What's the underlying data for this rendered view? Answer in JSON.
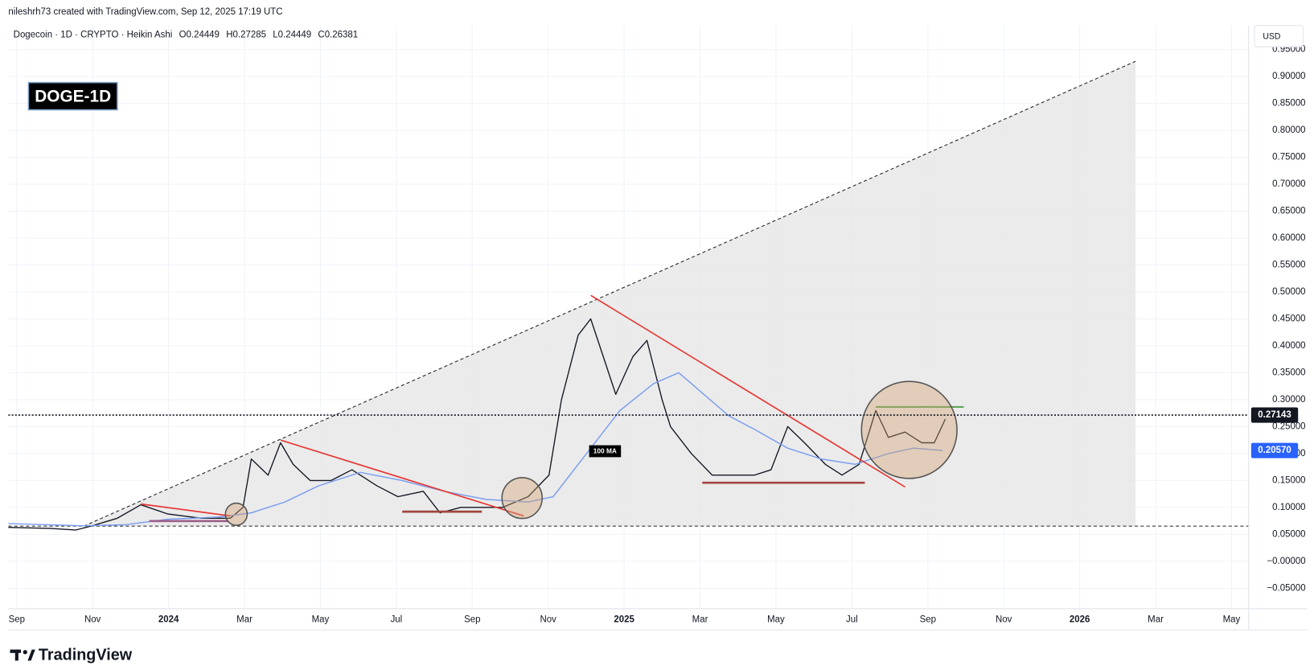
{
  "attribution": "nileshrh73 created with TradingView.com, Sep 12, 2025 17:19 UTC",
  "logo": "TradingView",
  "currency": "USD",
  "chart_data": {
    "type": "line",
    "title": "Dogecoin · 1D · CRYPTO · Heikin Ashi",
    "ohlc": [
      "O0.24449",
      "H0.27285",
      "L0.24449",
      "C0.26381"
    ],
    "badge": "DOGE-1D",
    "xlim": [
      -0.22,
      32.45
    ],
    "xticks": [
      {
        "value": 0,
        "label": "Sep"
      },
      {
        "value": 2,
        "label": "Nov"
      },
      {
        "value": 4,
        "label": "2024"
      },
      {
        "value": 6,
        "label": "Mar"
      },
      {
        "value": 8,
        "label": "May"
      },
      {
        "value": 10,
        "label": "Jul"
      },
      {
        "value": 12,
        "label": "Sep"
      },
      {
        "value": 14,
        "label": "Nov"
      },
      {
        "value": 16,
        "label": "2025"
      },
      {
        "value": 18,
        "label": "Mar"
      },
      {
        "value": 20,
        "label": "May"
      },
      {
        "value": 22,
        "label": "Jul"
      },
      {
        "value": 24,
        "label": "Sep"
      },
      {
        "value": 26,
        "label": "Nov"
      },
      {
        "value": 28,
        "label": "2026"
      },
      {
        "value": 30,
        "label": "Mar"
      },
      {
        "value": 32,
        "label": "May"
      }
    ],
    "ylim": [
      -0.088,
      0.963
    ],
    "yticks": [
      {
        "value": 0.95,
        "label": "0.95000"
      },
      {
        "value": 0.9,
        "label": "0.90000"
      },
      {
        "value": 0.85,
        "label": "0.85000"
      },
      {
        "value": 0.8,
        "label": "0.80000"
      },
      {
        "value": 0.75,
        "label": "0.75000"
      },
      {
        "value": 0.7,
        "label": "0.70000"
      },
      {
        "value": 0.65,
        "label": "0.65000"
      },
      {
        "value": 0.6,
        "label": "0.60000"
      },
      {
        "value": 0.55,
        "label": "0.55000"
      },
      {
        "value": 0.5,
        "label": "0.50000"
      },
      {
        "value": 0.45,
        "label": "0.45000"
      },
      {
        "value": 0.4,
        "label": "0.40000"
      },
      {
        "value": 0.35,
        "label": "0.35000"
      },
      {
        "value": 0.3,
        "label": "0.30000"
      },
      {
        "value": 0.25,
        "label": "0.25000"
      },
      {
        "value": 0.2,
        "label": "0.20000"
      },
      {
        "value": 0.15,
        "label": "0.15000"
      },
      {
        "value": 0.1,
        "label": "0.10000"
      },
      {
        "value": 0.05,
        "label": "0.05000"
      },
      {
        "value": 0,
        "label": "−0.00000"
      },
      {
        "value": -0.05,
        "label": "−0.05000"
      }
    ],
    "grid": true,
    "last_price": 0.27143,
    "ma_last": {
      "value": 0.2057,
      "label": "0.20570"
    },
    "series": [
      {
        "color": "#131722",
        "x": [
          -0.22,
          0.88,
          1.55,
          1.99,
          2.65,
          3.27,
          3.97,
          4.86,
          5.63,
          5.96,
          6.18,
          6.62,
          6.95,
          7.28,
          7.73,
          8.28,
          8.83,
          9.49,
          10.04,
          10.71,
          11.15,
          11.7,
          12.25,
          12.8,
          13.47,
          14.02,
          14.35,
          14.79,
          15.12,
          15.45,
          15.78,
          16.23,
          16.6,
          17.0,
          17.22,
          17.77,
          18.32,
          18.87,
          19.43,
          19.87,
          20.31,
          20.75,
          21.3,
          21.74,
          22.19,
          22.63,
          22.96,
          23.4,
          23.84,
          24.17,
          24.46
        ],
        "values": [
          0.063,
          0.061,
          0.058,
          0.066,
          0.08,
          0.105,
          0.088,
          0.08,
          0.08,
          0.1,
          0.19,
          0.16,
          0.22,
          0.18,
          0.15,
          0.15,
          0.17,
          0.14,
          0.12,
          0.13,
          0.09,
          0.1,
          0.1,
          0.1,
          0.12,
          0.16,
          0.3,
          0.42,
          0.45,
          0.38,
          0.31,
          0.38,
          0.41,
          0.3,
          0.25,
          0.2,
          0.16,
          0.16,
          0.16,
          0.17,
          0.25,
          0.22,
          0.18,
          0.16,
          0.18,
          0.28,
          0.23,
          0.24,
          0.22,
          0.22,
          0.264
        ]
      },
      {
        "name": "100 MA",
        "color": "#7b9ef0",
        "x": [
          -0.22,
          1.77,
          2.87,
          3.97,
          5.3,
          6.18,
          7.06,
          7.95,
          9.05,
          10.15,
          11.26,
          12.36,
          13.47,
          14.13,
          15.01,
          15.89,
          16.78,
          17.44,
          18.1,
          18.76,
          19.43,
          20.31,
          21.19,
          22.08,
          22.96,
          23.62,
          24.39
        ],
        "values": [
          0.07,
          0.066,
          0.068,
          0.078,
          0.082,
          0.09,
          0.11,
          0.14,
          0.165,
          0.15,
          0.13,
          0.115,
          0.11,
          0.12,
          0.2,
          0.28,
          0.33,
          0.35,
          0.31,
          0.27,
          0.245,
          0.21,
          0.19,
          0.18,
          0.2,
          0.21,
          0.2057
        ]
      }
    ]
  }
}
